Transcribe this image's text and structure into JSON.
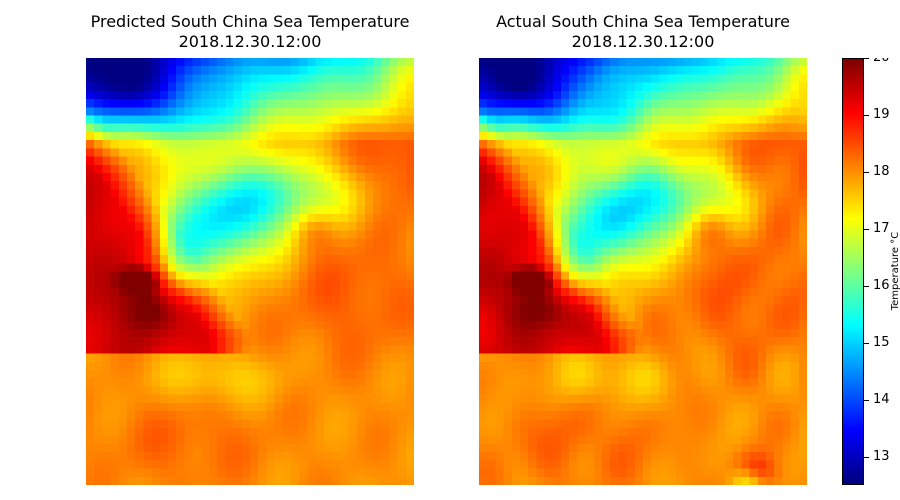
{
  "chart_data": [
    {
      "type": "heatmap",
      "title": "Predicted South China Sea Temperature",
      "subtitle": "2018.12.30.12:00",
      "colormap": "jet",
      "vmin": 12.5,
      "vmax": 20,
      "axes": "off",
      "grid_cols": 40,
      "grid_rows": 52
    },
    {
      "type": "heatmap",
      "title": "Actual South China Sea Temperature",
      "subtitle": "2018.12.30.12:00",
      "colormap": "jet",
      "vmin": 12.5,
      "vmax": 20,
      "axes": "off",
      "grid_cols": 40,
      "grid_rows": 52
    }
  ],
  "colorbar": {
    "label": "Temperature °C",
    "range": [
      12.5,
      20
    ],
    "ticks": [
      "13",
      "14",
      "15",
      "16",
      "17",
      "18",
      "19",
      "20"
    ],
    "tick_values": [
      13,
      14,
      15,
      16,
      17,
      18,
      19,
      20
    ],
    "colormap": "jet"
  }
}
